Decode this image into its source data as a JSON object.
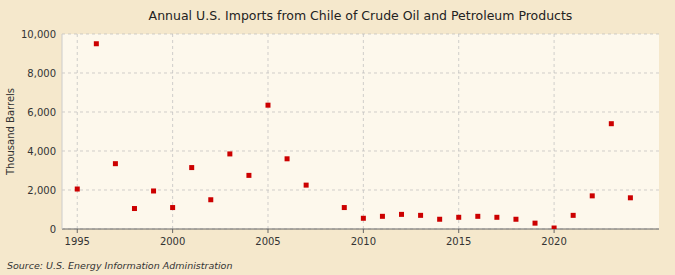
{
  "chart_data": {
    "type": "scatter",
    "title": "Annual U.S. Imports from Chile of Crude Oil and Petroleum Products",
    "y_label": "Thousand Barrels",
    "source": "Source: U.S. Energy Information Administration",
    "x": [
      1995,
      1996,
      1997,
      1998,
      1999,
      2000,
      2001,
      2002,
      2003,
      2004,
      2005,
      2006,
      2007,
      2009,
      2010,
      2011,
      2012,
      2013,
      2014,
      2015,
      2016,
      2017,
      2018,
      2019,
      2020,
      2021,
      2022,
      2023,
      2024
    ],
    "values": [
      2050,
      9500,
      3350,
      1050,
      1950,
      1100,
      3150,
      1500,
      3850,
      2750,
      6350,
      3600,
      2250,
      1100,
      550,
      650,
      750,
      700,
      500,
      600,
      650,
      600,
      500,
      300,
      50,
      700,
      1700,
      5400,
      1600
    ],
    "color": "#cc0000",
    "marker": "square",
    "xlim": [
      1994.2,
      2025.5
    ],
    "xticks": [
      1995,
      2000,
      2005,
      2010,
      2015,
      2020
    ],
    "ylim": [
      0,
      10000
    ],
    "yticks": [
      0,
      {
        "value": 2000,
        "label": "2,000"
      },
      {
        "value": 4000,
        "label": "4,000"
      },
      {
        "value": 6000,
        "label": "6,000"
      },
      {
        "value": 8000,
        "label": "8,000"
      },
      {
        "value": 10000,
        "label": "10,000"
      }
    ],
    "grid": true
  }
}
